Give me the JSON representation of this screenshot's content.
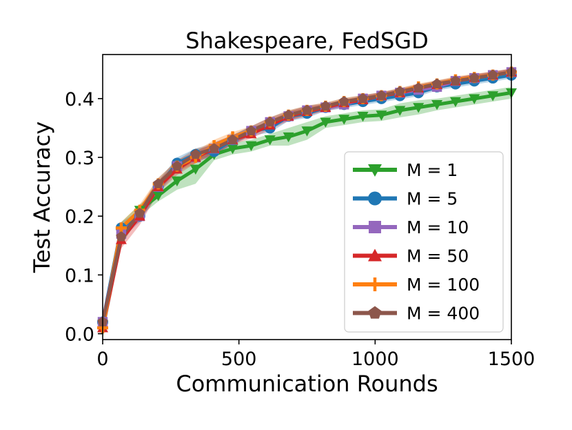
{
  "chart_data": {
    "type": "line",
    "title": "Shakespeare, FedSGD",
    "xlabel": "Communication Rounds",
    "ylabel": "Test Accuracy",
    "xlim": [
      0,
      1500
    ],
    "ylim": [
      -0.01,
      0.475
    ],
    "xticks": [
      0,
      500,
      1000,
      1500
    ],
    "yticks": [
      0.0,
      0.1,
      0.2,
      0.3,
      0.4
    ],
    "xtick_labels": [
      "0",
      "500",
      "1000",
      "1500"
    ],
    "ytick_labels": [
      "0.0",
      "0.1",
      "0.2",
      "0.3",
      "0.4"
    ],
    "grid": false,
    "legend_position": "lower-right",
    "x": [
      0,
      68,
      136,
      204,
      273,
      341,
      409,
      477,
      545,
      614,
      682,
      750,
      818,
      886,
      955,
      1023,
      1091,
      1159,
      1227,
      1295,
      1364,
      1432,
      1500
    ],
    "series": [
      {
        "name": "M = 1",
        "color": "#2ca02c",
        "marker": "triangle-down",
        "values": [
          0.01,
          0.17,
          0.21,
          0.235,
          0.26,
          0.28,
          0.305,
          0.315,
          0.32,
          0.33,
          0.335,
          0.345,
          0.36,
          0.365,
          0.37,
          0.372,
          0.38,
          0.385,
          0.39,
          0.395,
          0.4,
          0.405,
          0.41
        ],
        "band": [
          0.02,
          0.02,
          0.01,
          0.01,
          0.015,
          0.025,
          0.01,
          0.01,
          0.01,
          0.01,
          0.015,
          0.015,
          0.01,
          0.01,
          0.01,
          0.01,
          0.012,
          0.012,
          0.01,
          0.01,
          0.01,
          0.01,
          0.01
        ]
      },
      {
        "name": "M = 5",
        "color": "#1f77b4",
        "marker": "circle",
        "values": [
          0.02,
          0.18,
          0.2,
          0.25,
          0.29,
          0.305,
          0.31,
          0.33,
          0.345,
          0.35,
          0.37,
          0.375,
          0.385,
          0.39,
          0.395,
          0.4,
          0.405,
          0.41,
          0.42,
          0.425,
          0.43,
          0.435,
          0.44
        ],
        "band": [
          0.005,
          0.01,
          0.01,
          0.01,
          0.01,
          0.01,
          0.01,
          0.008,
          0.008,
          0.008,
          0.008,
          0.008,
          0.006,
          0.006,
          0.006,
          0.006,
          0.006,
          0.006,
          0.006,
          0.006,
          0.006,
          0.006,
          0.006
        ]
      },
      {
        "name": "M = 10",
        "color": "#9467bd",
        "marker": "square",
        "values": [
          0.02,
          0.17,
          0.2,
          0.25,
          0.285,
          0.3,
          0.315,
          0.33,
          0.345,
          0.36,
          0.37,
          0.38,
          0.385,
          0.39,
          0.4,
          0.405,
          0.41,
          0.415,
          0.42,
          0.43,
          0.435,
          0.44,
          0.445
        ],
        "band": [
          0.005,
          0.01,
          0.01,
          0.01,
          0.01,
          0.01,
          0.01,
          0.008,
          0.008,
          0.008,
          0.008,
          0.008,
          0.006,
          0.006,
          0.006,
          0.006,
          0.006,
          0.006,
          0.006,
          0.006,
          0.006,
          0.006,
          0.006
        ]
      },
      {
        "name": "M = 50",
        "color": "#d62728",
        "marker": "triangle-up",
        "values": [
          0.01,
          0.16,
          0.2,
          0.25,
          0.28,
          0.3,
          0.315,
          0.33,
          0.34,
          0.355,
          0.37,
          0.378,
          0.385,
          0.393,
          0.398,
          0.405,
          0.41,
          0.418,
          0.424,
          0.43,
          0.436,
          0.44,
          0.445
        ],
        "band": [
          0.005,
          0.015,
          0.015,
          0.01,
          0.01,
          0.01,
          0.01,
          0.008,
          0.008,
          0.008,
          0.008,
          0.008,
          0.006,
          0.006,
          0.006,
          0.006,
          0.006,
          0.006,
          0.006,
          0.006,
          0.006,
          0.006,
          0.006
        ]
      },
      {
        "name": "M = 100",
        "color": "#ff7f0e",
        "marker": "plus",
        "values": [
          0.01,
          0.18,
          0.21,
          0.255,
          0.285,
          0.3,
          0.32,
          0.335,
          0.345,
          0.36,
          0.372,
          0.38,
          0.387,
          0.395,
          0.4,
          0.405,
          0.412,
          0.42,
          0.425,
          0.432,
          0.436,
          0.44,
          0.445
        ],
        "band": [
          0.005,
          0.01,
          0.01,
          0.01,
          0.01,
          0.01,
          0.01,
          0.008,
          0.008,
          0.008,
          0.008,
          0.008,
          0.006,
          0.006,
          0.006,
          0.006,
          0.006,
          0.006,
          0.006,
          0.006,
          0.006,
          0.006,
          0.006
        ]
      },
      {
        "name": "M = 400",
        "color": "#8c564b",
        "marker": "pentagon",
        "values": [
          0.02,
          0.165,
          0.205,
          0.255,
          0.285,
          0.305,
          0.315,
          0.33,
          0.345,
          0.36,
          0.372,
          0.38,
          0.387,
          0.395,
          0.4,
          0.405,
          0.412,
          0.418,
          0.425,
          0.43,
          0.435,
          0.44,
          0.445
        ],
        "band": [
          0.005,
          0.01,
          0.01,
          0.01,
          0.01,
          0.01,
          0.01,
          0.008,
          0.008,
          0.008,
          0.008,
          0.008,
          0.006,
          0.006,
          0.006,
          0.006,
          0.006,
          0.006,
          0.006,
          0.006,
          0.006,
          0.006,
          0.006
        ]
      }
    ]
  }
}
